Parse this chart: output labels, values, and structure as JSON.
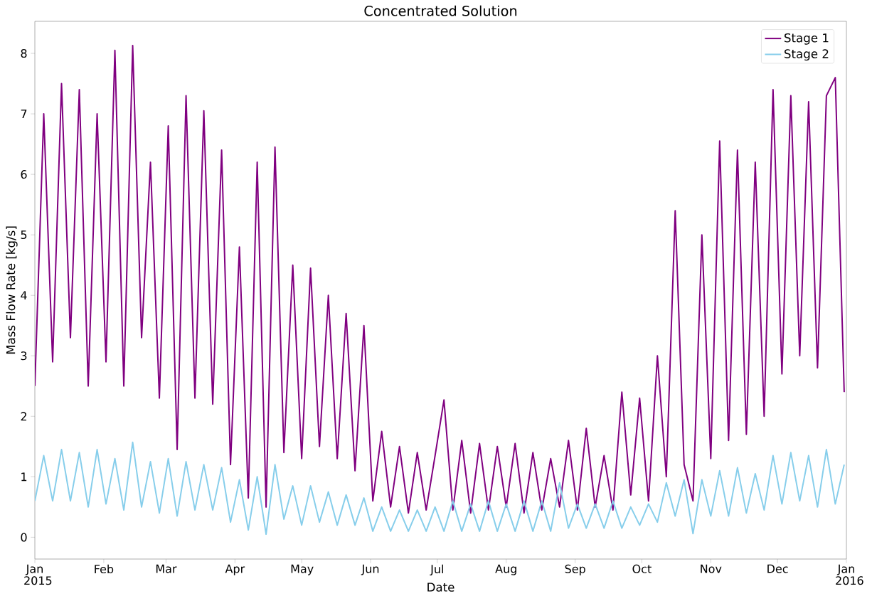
{
  "chart_data": {
    "type": "line",
    "title": "Concentrated Solution",
    "xlabel": "Date",
    "ylabel": "Mass Flow Rate [kg/s]",
    "x": [
      "2015-01-01",
      "2015-01-05",
      "2015-01-09",
      "2015-01-13",
      "2015-01-17",
      "2015-01-21",
      "2015-01-25",
      "2015-01-29",
      "2015-02-02",
      "2015-02-06",
      "2015-02-10",
      "2015-02-14",
      "2015-02-18",
      "2015-02-22",
      "2015-02-26",
      "2015-03-02",
      "2015-03-06",
      "2015-03-10",
      "2015-03-14",
      "2015-03-18",
      "2015-03-22",
      "2015-03-26",
      "2015-03-30",
      "2015-04-03",
      "2015-04-07",
      "2015-04-11",
      "2015-04-15",
      "2015-04-19",
      "2015-04-23",
      "2015-04-27",
      "2015-05-01",
      "2015-05-05",
      "2015-05-09",
      "2015-05-13",
      "2015-05-17",
      "2015-05-21",
      "2015-05-25",
      "2015-05-29",
      "2015-06-02",
      "2015-06-06",
      "2015-06-10",
      "2015-06-14",
      "2015-06-18",
      "2015-06-22",
      "2015-06-26",
      "2015-06-30",
      "2015-07-04",
      "2015-07-08",
      "2015-07-12",
      "2015-07-16",
      "2015-07-20",
      "2015-07-24",
      "2015-07-28",
      "2015-08-01",
      "2015-08-05",
      "2015-08-09",
      "2015-08-13",
      "2015-08-17",
      "2015-08-21",
      "2015-08-25",
      "2015-08-29",
      "2015-09-02",
      "2015-09-06",
      "2015-09-10",
      "2015-09-14",
      "2015-09-18",
      "2015-09-22",
      "2015-09-26",
      "2015-09-30",
      "2015-10-04",
      "2015-10-08",
      "2015-10-12",
      "2015-10-16",
      "2015-10-20",
      "2015-10-24",
      "2015-10-28",
      "2015-11-01",
      "2015-11-05",
      "2015-11-09",
      "2015-11-13",
      "2015-11-17",
      "2015-11-21",
      "2015-11-25",
      "2015-11-29",
      "2015-12-03",
      "2015-12-07",
      "2015-12-11",
      "2015-12-15",
      "2015-12-19",
      "2015-12-23",
      "2015-12-27",
      "2015-12-31"
    ],
    "series": [
      {
        "name": "Stage 1",
        "color": "#800080",
        "values": [
          2.5,
          7.0,
          2.9,
          7.5,
          3.3,
          7.4,
          2.5,
          7.0,
          2.9,
          8.05,
          2.5,
          8.13,
          3.3,
          6.2,
          2.3,
          6.8,
          1.45,
          7.3,
          2.3,
          7.05,
          2.2,
          6.4,
          1.2,
          4.8,
          0.65,
          6.2,
          0.5,
          6.45,
          1.4,
          4.5,
          1.3,
          4.45,
          1.5,
          4.0,
          1.3,
          3.7,
          1.1,
          3.5,
          0.6,
          1.75,
          0.5,
          1.5,
          0.4,
          1.4,
          0.45,
          1.35,
          2.27,
          0.45,
          1.6,
          0.4,
          1.55,
          0.45,
          1.5,
          0.5,
          1.55,
          0.4,
          1.4,
          0.45,
          1.3,
          0.5,
          1.6,
          0.45,
          1.8,
          0.5,
          1.35,
          0.45,
          2.4,
          0.7,
          2.3,
          0.6,
          3.0,
          1.0,
          5.4,
          1.2,
          0.6,
          5.0,
          1.3,
          6.55,
          1.6,
          6.4,
          1.7,
          6.2,
          2.0,
          7.4,
          2.7,
          7.3,
          3.0,
          7.2,
          2.8,
          7.3,
          7.6,
          2.4
        ]
      },
      {
        "name": "Stage 2",
        "color": "#87ceeb",
        "values": [
          0.6,
          1.35,
          0.6,
          1.45,
          0.6,
          1.4,
          0.5,
          1.45,
          0.55,
          1.3,
          0.45,
          1.57,
          0.5,
          1.25,
          0.4,
          1.3,
          0.35,
          1.25,
          0.45,
          1.2,
          0.45,
          1.15,
          0.25,
          0.95,
          0.12,
          1.0,
          0.05,
          1.2,
          0.3,
          0.85,
          0.2,
          0.85,
          0.25,
          0.75,
          0.2,
          0.7,
          0.2,
          0.65,
          0.1,
          0.5,
          0.1,
          0.45,
          0.1,
          0.45,
          0.1,
          0.5,
          0.1,
          0.6,
          0.1,
          0.55,
          0.1,
          0.6,
          0.1,
          0.55,
          0.1,
          0.6,
          0.1,
          0.6,
          0.1,
          0.9,
          0.15,
          0.55,
          0.15,
          0.55,
          0.15,
          0.6,
          0.15,
          0.5,
          0.2,
          0.55,
          0.25,
          0.9,
          0.35,
          0.95,
          0.06,
          0.95,
          0.35,
          1.1,
          0.35,
          1.15,
          0.4,
          1.05,
          0.45,
          1.35,
          0.55,
          1.4,
          0.6,
          1.35,
          0.5,
          1.45,
          0.55,
          1.2
        ]
      }
    ],
    "xlim": [
      "2015-01-01",
      "2016-01-01"
    ],
    "xticks": [
      {
        "value": "2015-01-01",
        "label": "Jan 2015"
      },
      {
        "value": "2015-02-01",
        "label": "Feb"
      },
      {
        "value": "2015-03-01",
        "label": "Mar"
      },
      {
        "value": "2015-04-01",
        "label": "Apr"
      },
      {
        "value": "2015-05-01",
        "label": "May"
      },
      {
        "value": "2015-06-01",
        "label": "Jun"
      },
      {
        "value": "2015-07-01",
        "label": "Jul"
      },
      {
        "value": "2015-08-01",
        "label": "Aug"
      },
      {
        "value": "2015-09-01",
        "label": "Sep"
      },
      {
        "value": "2015-10-01",
        "label": "Oct"
      },
      {
        "value": "2015-11-01",
        "label": "Nov"
      },
      {
        "value": "2015-12-01",
        "label": "Dec"
      },
      {
        "value": "2016-01-01",
        "label": "Jan 2016"
      }
    ],
    "ylim": [
      -0.36,
      8.53
    ],
    "yticks": [
      0,
      1,
      2,
      3,
      4,
      5,
      6,
      7,
      8
    ],
    "legend": "top right",
    "grid": false
  }
}
